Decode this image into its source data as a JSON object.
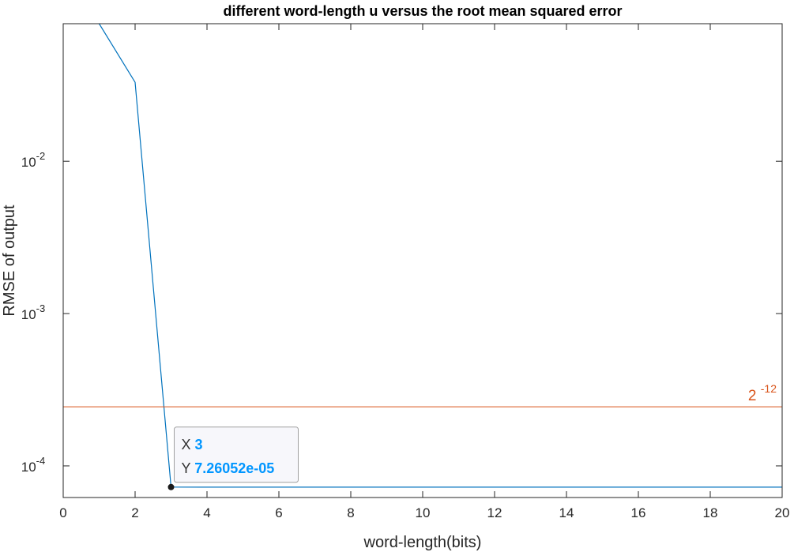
{
  "chart_data": {
    "type": "line",
    "title": "different word-length u versus the root mean squared error",
    "xlabel": "word-length(bits)",
    "ylabel": "RMSE of output",
    "xlim": [
      0,
      20
    ],
    "ylim": [
      6.2e-05,
      0.08
    ],
    "yscale": "log",
    "grid": false,
    "x_ticks": [
      "0",
      "2",
      "4",
      "6",
      "8",
      "10",
      "12",
      "14",
      "16",
      "18",
      "20"
    ],
    "y_ticks": [
      {
        "base": "10",
        "exp": "-4"
      },
      {
        "base": "10",
        "exp": "-3"
      },
      {
        "base": "10",
        "exp": "-2"
      }
    ],
    "series": [
      {
        "color": "#0072BD",
        "x": [
          1,
          2,
          3,
          4,
          5,
          6,
          7,
          8,
          9,
          10,
          11,
          12,
          13,
          14,
          15,
          16,
          17,
          18,
          19,
          20
        ],
        "y": [
          0.08,
          0.033,
          7.26052e-05,
          7.25e-05,
          7.25e-05,
          7.25e-05,
          7.25e-05,
          7.25e-05,
          7.25e-05,
          7.25e-05,
          7.25e-05,
          7.25e-05,
          7.25e-05,
          7.25e-05,
          7.25e-05,
          7.25e-05,
          7.25e-05,
          7.25e-05,
          7.25e-05,
          7.25e-05
        ]
      }
    ],
    "reference_line": {
      "y": 0.000244140625,
      "color": "#D95319",
      "label_base": "2",
      "label_exp": "-12"
    },
    "datatip": {
      "x_label": "X",
      "x_value": "3",
      "y_label": "Y",
      "y_value": "7.26052e-05",
      "value_color": "#0096FF",
      "x": 3,
      "y": 7.26052e-05
    }
  }
}
